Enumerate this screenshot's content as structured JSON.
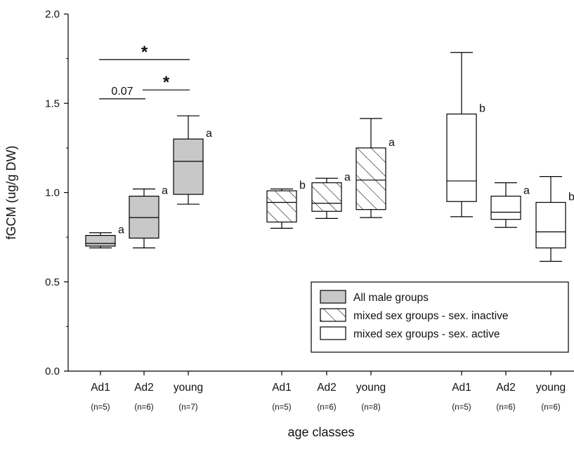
{
  "chart_data": {
    "type": "box",
    "ylabel": "fGCM (ug/g DW)",
    "xlabel": "age classes",
    "ylim": [
      0.0,
      2.0
    ],
    "yticks": [
      "0.0",
      "0.5",
      "1.0",
      "1.5",
      "2.0"
    ],
    "grid": false,
    "legend": {
      "placement": "lower-right",
      "entries": [
        {
          "label": "All male groups",
          "fill": "gray"
        },
        {
          "label": "mixed sex groups - sex. inactive",
          "fill": "hatch"
        },
        {
          "label": "mixed sex groups - sex. active",
          "fill": "white"
        }
      ]
    },
    "groups": [
      {
        "legend_index": 0,
        "boxes": [
          {
            "category": "Ad1",
            "n": "(n=5)",
            "whisker_low": 0.69,
            "q1": 0.7,
            "median": 0.715,
            "q3": 0.76,
            "whisker_high": 0.775,
            "letter": "a"
          },
          {
            "category": "Ad2",
            "n": "(n=6)",
            "whisker_low": 0.69,
            "q1": 0.745,
            "median": 0.86,
            "q3": 0.98,
            "whisker_high": 1.02,
            "letter": "a"
          },
          {
            "category": "young",
            "n": "(n=7)",
            "whisker_low": 0.935,
            "q1": 0.99,
            "median": 1.175,
            "q3": 1.3,
            "whisker_high": 1.43,
            "letter": "a"
          }
        ]
      },
      {
        "legend_index": 1,
        "boxes": [
          {
            "category": "Ad1",
            "n": "(n=5)",
            "whisker_low": 0.8,
            "q1": 0.835,
            "median": 0.945,
            "q3": 1.01,
            "whisker_high": 1.02,
            "letter": "b"
          },
          {
            "category": "Ad2",
            "n": "(n=6)",
            "whisker_low": 0.855,
            "q1": 0.895,
            "median": 0.94,
            "q3": 1.055,
            "whisker_high": 1.08,
            "letter": "a"
          },
          {
            "category": "young",
            "n": "(n=8)",
            "whisker_low": 0.86,
            "q1": 0.905,
            "median": 1.07,
            "q3": 1.25,
            "whisker_high": 1.415,
            "letter": "a"
          }
        ]
      },
      {
        "legend_index": 2,
        "boxes": [
          {
            "category": "Ad1",
            "n": "(n=5)",
            "whisker_low": 0.865,
            "q1": 0.95,
            "median": 1.065,
            "q3": 1.44,
            "whisker_high": 1.785,
            "letter": "b"
          },
          {
            "category": "Ad2",
            "n": "(n=6)",
            "whisker_low": 0.805,
            "q1": 0.85,
            "median": 0.89,
            "q3": 0.98,
            "whisker_high": 1.055,
            "letter": "a"
          },
          {
            "category": "young",
            "n": "(n=6)",
            "whisker_low": 0.615,
            "q1": 0.69,
            "median": 0.78,
            "q3": 0.945,
            "whisker_high": 1.09,
            "letter": "b"
          }
        ]
      }
    ],
    "annotations": [
      {
        "group": 0,
        "from": 0,
        "to": 2,
        "y": 1.745,
        "label": "*"
      },
      {
        "group": 0,
        "from": 1,
        "to": 2,
        "y": 1.575,
        "label": "*"
      },
      {
        "group": 0,
        "from": 0,
        "to": 1,
        "y": 1.525,
        "label": "0.07"
      }
    ],
    "colors": {
      "gray_fill": "#c8c8c8",
      "stroke": "#000000"
    }
  }
}
